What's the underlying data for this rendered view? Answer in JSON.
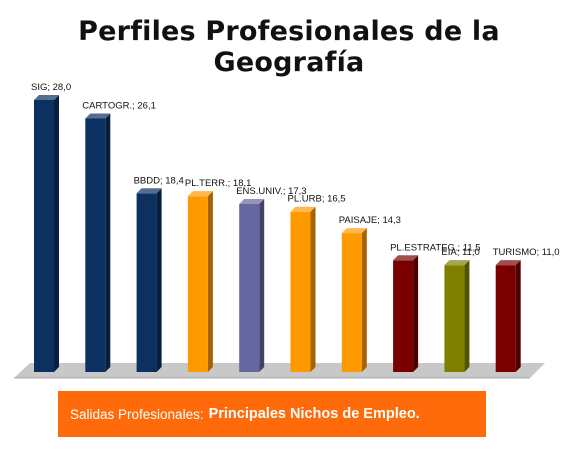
{
  "page_title": "Perfiles Profesionales de la Geografía",
  "colors": {
    "navy": "#0c3060",
    "orange": "#ff9900",
    "lavender": "#6666a0",
    "maroon": "#7a0000",
    "olive": "#7f8000",
    "banner": "#ff6a0a"
  },
  "chart_data": {
    "type": "bar",
    "categories": [
      "SIG",
      "CARTOGR.",
      "BBDD",
      "PL.TERR.",
      "ENS.UNIV.",
      "PL.URB",
      "PAISAJE",
      "PL.ESTRATEG.",
      "EIA",
      "TURISMO"
    ],
    "values": [
      28.0,
      26.1,
      18.4,
      18.1,
      17.3,
      16.5,
      14.3,
      11.5,
      11.0,
      11.0
    ],
    "data_labels": [
      "SIG; 28,0",
      "CARTOGR.; 26,1",
      "BBDD; 18,4",
      "PL.TERR.; 18,1",
      "ENS.UNIV.; 17,3",
      "PL.URB; 16,5",
      "PAISAJE; 14,3",
      "PL.ESTRATEG.; 11,5",
      "EIA; 11,0",
      "TURISMO; 11,0"
    ],
    "bar_colors": [
      "#0c3060",
      "#0c3060",
      "#0c3060",
      "#ff9900",
      "#6666a0",
      "#ff9900",
      "#ff9900",
      "#7a0000",
      "#7f8000",
      "#7a0000"
    ],
    "ylim": [
      0,
      28
    ],
    "title": "Perfiles Profesionales de la Geografía",
    "xlabel": "",
    "ylabel": "",
    "grid": false,
    "legend": "none",
    "style": "3d-columns"
  },
  "banner": {
    "prefix": "Salidas Profesionales:",
    "emphasis": "Principales Nichos de Empleo."
  }
}
